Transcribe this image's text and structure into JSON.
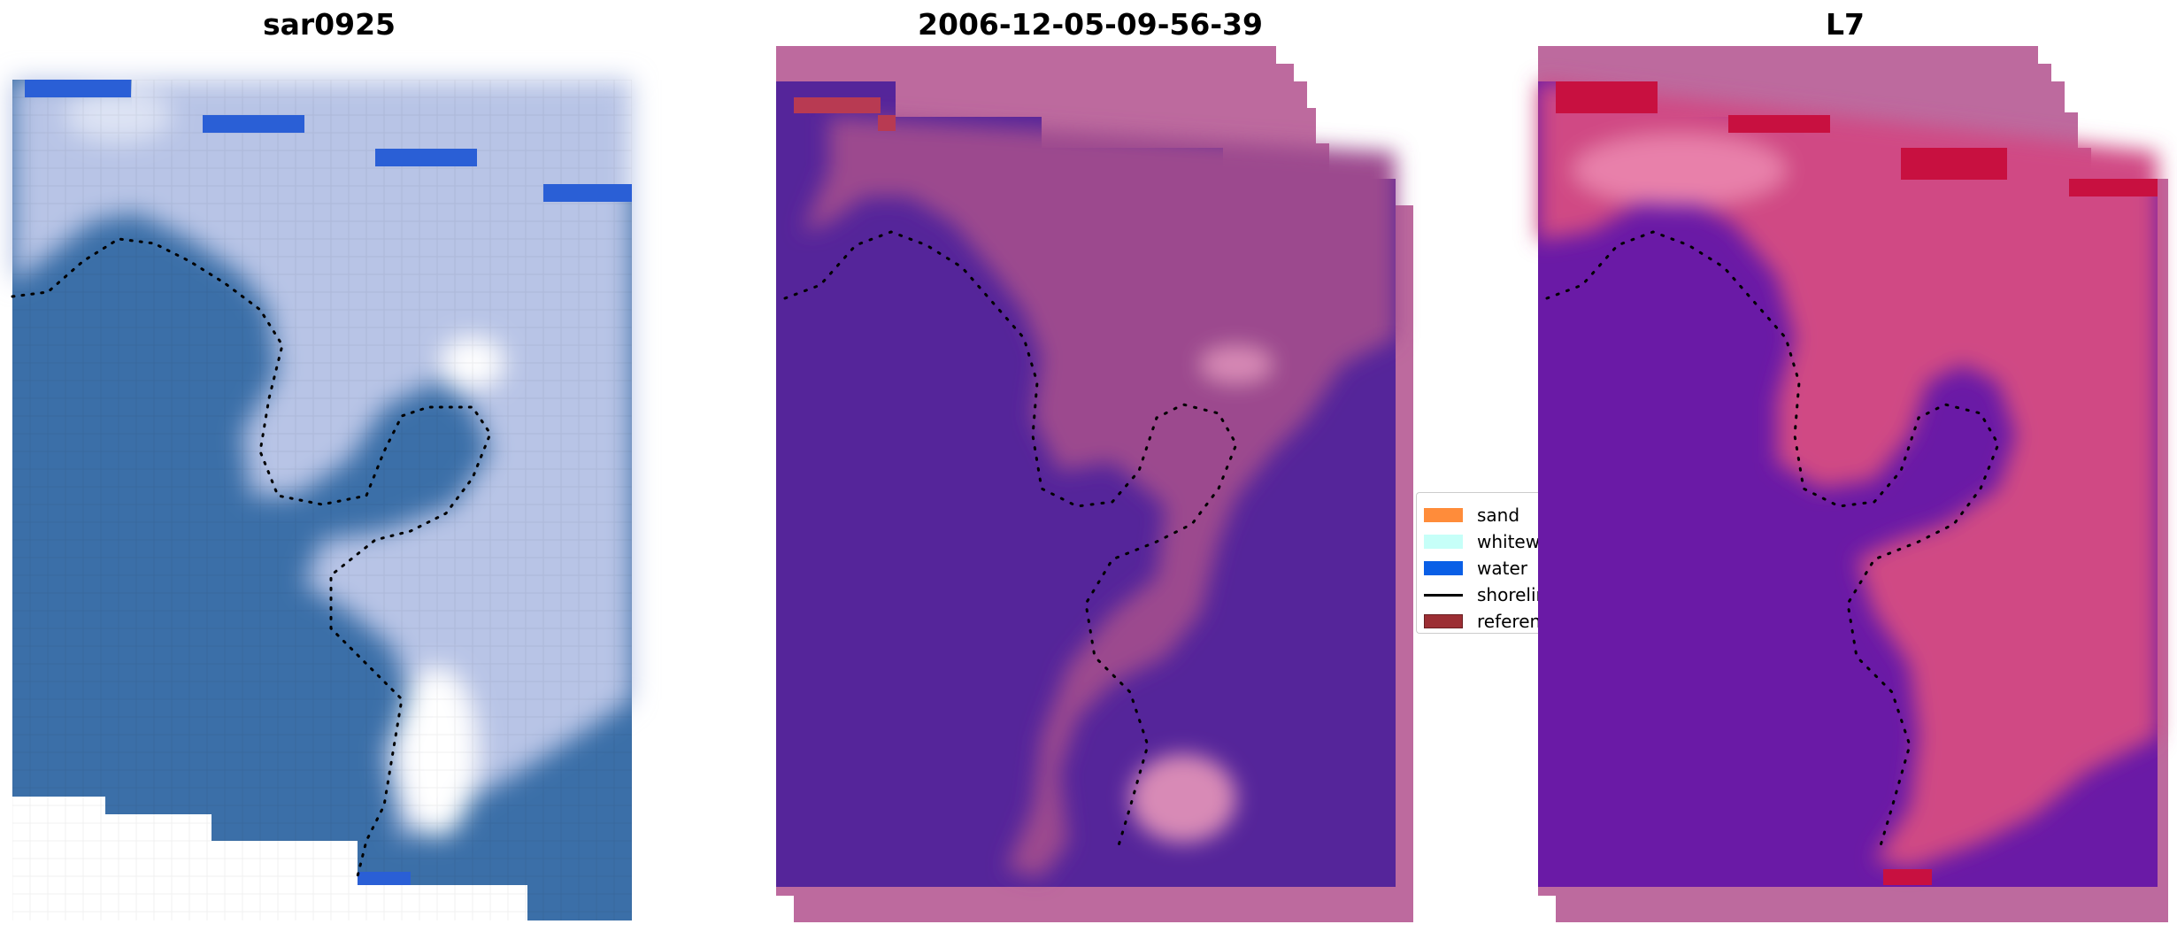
{
  "panels": [
    {
      "title": "sar0925",
      "colors": {
        "water": "#3b6fa8",
        "land": "#b8c4e6",
        "bright": "#ffffff",
        "edge": "#2a5fd6"
      }
    },
    {
      "title": "2006-12-05-09-56-39",
      "colors": {
        "water": "#55259a",
        "land": "#9c4a8e",
        "pad": "#bd6a9e",
        "bright": "#d88ab6",
        "reference": "#b83a52"
      }
    },
    {
      "title": "L7",
      "colors": {
        "water": "#6a1aa6",
        "land": "#d04a84",
        "pad": "#bd6a9e",
        "bright": "#e880aa",
        "reference": "#c81040"
      }
    }
  ],
  "legend": {
    "items": [
      {
        "label": "sand",
        "color": "#ff8c3a",
        "icon": "swatch"
      },
      {
        "label": "whitewater",
        "color": "#c6fff8",
        "icon": "swatch"
      },
      {
        "label": "water",
        "color": "#0a5fe6",
        "icon": "swatch"
      },
      {
        "label": "shoreline",
        "color": "#000000",
        "icon": "line"
      },
      {
        "label": "reference",
        "color": "#9c2e34",
        "icon": "swatch"
      }
    ]
  }
}
